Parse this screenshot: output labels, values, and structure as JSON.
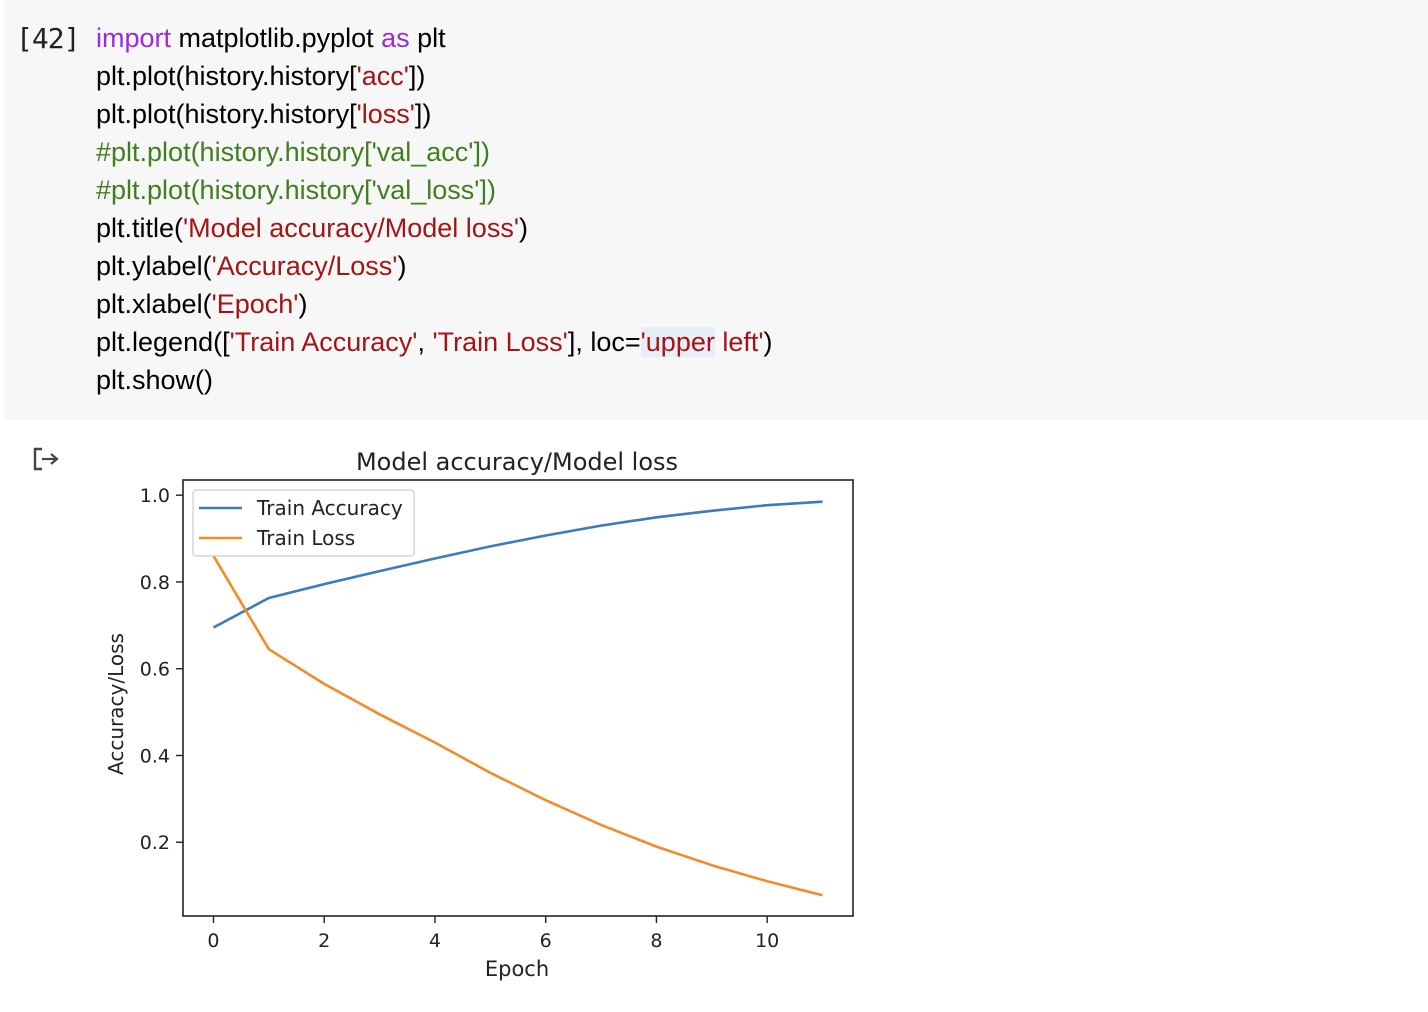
{
  "cell": {
    "execution_count": "[42]",
    "code_lines": [
      [
        {
          "t": "import",
          "c": "kw"
        },
        {
          "t": " matplotlib.pyplot ",
          "c": ""
        },
        {
          "t": "as",
          "c": "kw"
        },
        {
          "t": " plt",
          "c": ""
        }
      ],
      [
        {
          "t": "plt.plot(history.history[",
          "c": ""
        },
        {
          "t": "'acc'",
          "c": "str"
        },
        {
          "t": "])",
          "c": ""
        }
      ],
      [
        {
          "t": "plt.plot(history.history[",
          "c": ""
        },
        {
          "t": "'loss'",
          "c": "str"
        },
        {
          "t": "])",
          "c": ""
        }
      ],
      [
        {
          "t": "#plt.plot(history.history['val_acc'])",
          "c": "cm"
        }
      ],
      [
        {
          "t": "#plt.plot(history.history['val_loss'])",
          "c": "cm"
        }
      ],
      [
        {
          "t": "plt.title(",
          "c": ""
        },
        {
          "t": "'Model accuracy/Model loss'",
          "c": "str"
        },
        {
          "t": ")",
          "c": ""
        }
      ],
      [
        {
          "t": "plt.ylabel(",
          "c": ""
        },
        {
          "t": "'Accuracy/Loss'",
          "c": "str"
        },
        {
          "t": ")",
          "c": ""
        }
      ],
      [
        {
          "t": "plt.xlabel(",
          "c": ""
        },
        {
          "t": "'Epoch'",
          "c": "str"
        },
        {
          "t": ")",
          "c": ""
        }
      ],
      [
        {
          "t": "plt.legend([",
          "c": ""
        },
        {
          "t": "'Train Accuracy'",
          "c": "str"
        },
        {
          "t": ", ",
          "c": ""
        },
        {
          "t": "'Train Loss'",
          "c": "str"
        },
        {
          "t": "], loc=",
          "c": ""
        },
        {
          "t": "'upper",
          "c": "str hl"
        },
        {
          "t": " left'",
          "c": "str"
        },
        {
          "t": ")",
          "c": ""
        }
      ],
      [
        {
          "t": "plt.show()",
          "c": ""
        }
      ]
    ]
  },
  "output": {
    "icon": "output-arrow-icon"
  },
  "chart_data": {
    "type": "line",
    "title": "Model accuracy/Model loss",
    "xlabel": "Epoch",
    "ylabel": "Accuracy/Loss",
    "xlim": [
      -0.55,
      11.55
    ],
    "ylim": [
      0.03,
      1.035
    ],
    "xticks": [
      0,
      2,
      4,
      6,
      8,
      10
    ],
    "yticks": [
      0.2,
      0.4,
      0.6,
      0.8,
      1.0
    ],
    "xtick_labels": [
      "0",
      "2",
      "4",
      "6",
      "8",
      "10"
    ],
    "ytick_labels": [
      "0.2",
      "0.4",
      "0.6",
      "0.8",
      "1.0"
    ],
    "legend_loc": "upper-left",
    "x": [
      0,
      1,
      2,
      3,
      4,
      5,
      6,
      7,
      8,
      9,
      10,
      11
    ],
    "series": [
      {
        "name": "Train Accuracy",
        "color": "#3b7bbf",
        "values": [
          0.695,
          0.763,
          0.795,
          0.825,
          0.854,
          0.882,
          0.907,
          0.93,
          0.949,
          0.964,
          0.977,
          0.985
        ]
      },
      {
        "name": "Train Loss",
        "color": "#f28c28",
        "values": [
          0.86,
          0.645,
          0.565,
          0.495,
          0.43,
          0.36,
          0.297,
          0.24,
          0.19,
          0.147,
          0.11,
          0.078
        ]
      }
    ]
  }
}
